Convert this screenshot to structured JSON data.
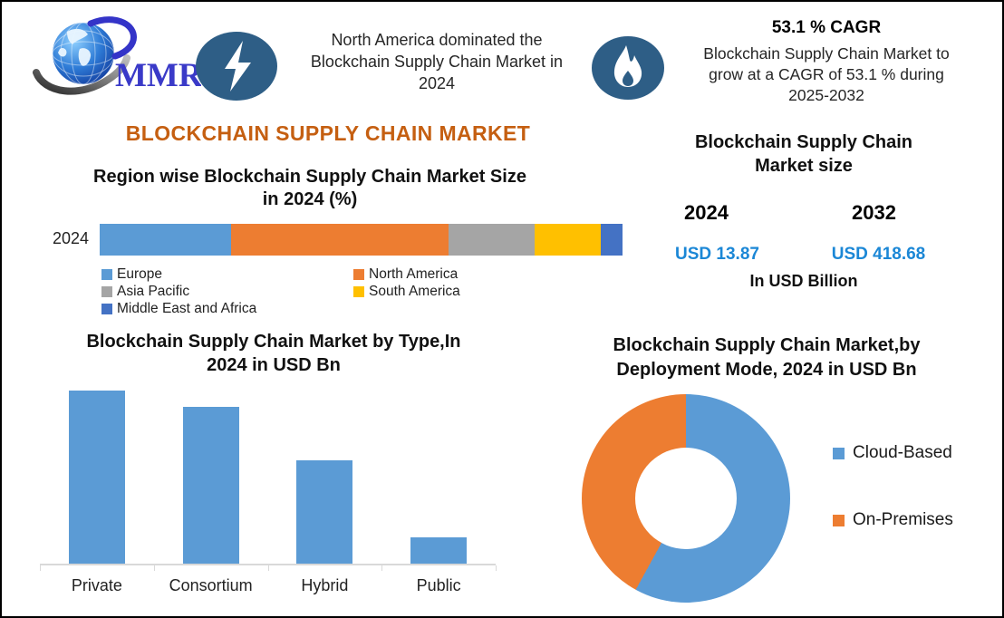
{
  "brand": {
    "logo_text": "MMR"
  },
  "header": {
    "highlight_lines": [
      "North America dominated the",
      "Blockchain Supply Chain Market in",
      "2024"
    ],
    "cagr_title": "53.1 % CAGR",
    "cagr_lines": [
      "Blockchain Supply Chain Market to",
      "grow at a CAGR of 53.1 % during",
      "2025-2032"
    ]
  },
  "main_title": "BLOCKCHAIN SUPPLY CHAIN MARKET",
  "market_size": {
    "title_lines": [
      "Blockchain Supply Chain",
      "Market size"
    ],
    "start_year": "2024",
    "end_year": "2032",
    "start_value": "USD 13.87",
    "end_value": "USD 418.68",
    "unit_label": "In USD Billion"
  },
  "colors": {
    "accent_orange": "#C55F11",
    "value_blue": "#1B87D6",
    "icon_navy": "#2E5E86",
    "logo_blue": "#3A3AC8",
    "axis_gray": "#D9D9D9"
  },
  "chart_data": [
    {
      "type": "bar",
      "variant": "horizontal-stacked",
      "title": "Region wise Blockchain Supply Chain Market Size in 2024 (%)",
      "title_lines": [
        "Region wise Blockchain Supply Chain Market Size",
        "in 2024 (%)"
      ],
      "categories": [
        "2024"
      ],
      "series": [
        {
          "name": "Europe",
          "color": "#5B9BD5",
          "value_pct": 25.1
        },
        {
          "name": "North America",
          "color": "#ED7D31",
          "value_pct": 41.6
        },
        {
          "name": "Asia Pacific",
          "color": "#A5A5A5",
          "value_pct": 16.5
        },
        {
          "name": "South America",
          "color": "#FFC000",
          "value_pct": 12.6
        },
        {
          "name": "Middle East and Africa",
          "color": "#4472C4",
          "value_pct": 4.2
        }
      ],
      "legend_position": "bottom",
      "note": "shares estimated from segment widths; no data labels shown"
    },
    {
      "type": "bar",
      "title": "Blockchain Supply Chain Market by Type,In 2024 in USD Bn",
      "title_lines": [
        "Blockchain Supply Chain Market by Type,In",
        "2024 in USD Bn"
      ],
      "categories": [
        "Private",
        "Consortium",
        "Hybrid",
        "Public"
      ],
      "values": [
        5.2,
        4.7,
        3.1,
        0.8
      ],
      "bar_color": "#5B9BD5",
      "ylim": [
        0,
        5.3
      ],
      "grid": false,
      "note": "no value axis shown; values estimated from relative bar heights vs 2024 total"
    },
    {
      "type": "pie",
      "variant": "donut",
      "title": "Blockchain Supply Chain Market,by Deployment Mode, 2024 in USD Bn",
      "title_lines": [
        "Blockchain Supply Chain Market,by",
        "Deployment Mode, 2024 in USD Bn"
      ],
      "labels": [
        "Cloud-Based",
        "On-Premises"
      ],
      "values_pct": [
        58,
        42
      ],
      "colors": [
        "#5B9BD5",
        "#ED7D31"
      ],
      "legend_position": "right",
      "note": "shares estimated from arc angles; no data labels shown"
    }
  ]
}
